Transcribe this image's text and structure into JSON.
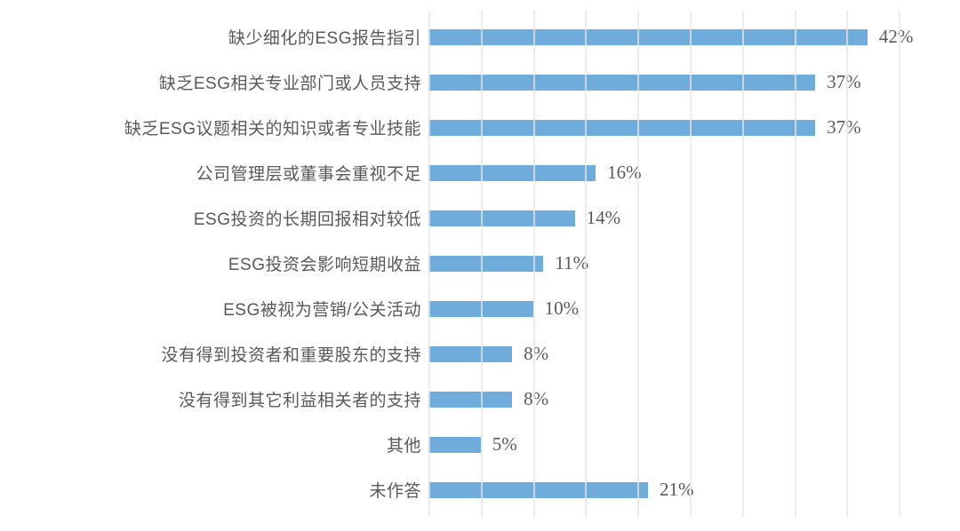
{
  "chart_data": {
    "type": "bar",
    "orientation": "horizontal",
    "title": "",
    "xlabel": "",
    "ylabel": "",
    "categories": [
      "缺少细化的ESG报告指引",
      "缺乏ESG相关专业部门或人员支持",
      "缺乏ESG议题相关的知识或者专业技能",
      "公司管理层或董事会重视不足",
      "ESG投资的长期回报相对较低",
      "ESG投资会影响短期收益",
      "ESG被视为营销/公关活动",
      "没有得到投资者和重要股东的支持",
      "没有得到其它利益相关者的支持",
      "其他",
      "未作答"
    ],
    "values": [
      42,
      37,
      37,
      16,
      14,
      11,
      10,
      8,
      8,
      5,
      21
    ],
    "value_labels": [
      "42%",
      "37%",
      "37%",
      "16%",
      "14%",
      "11%",
      "10%",
      "8%",
      "8%",
      "5%",
      "21%"
    ],
    "unit": "%",
    "xlim": [
      0,
      50
    ],
    "gridlines_percent": [
      0,
      5,
      10,
      15,
      20,
      25,
      30,
      35,
      40,
      45
    ],
    "grid": "vertical-only",
    "legend": "none",
    "axis_tick_labels": "none",
    "bar_color": "#6FABDB",
    "gridline_color": "#E5E5E5",
    "label_color": "#595959",
    "value_color": "#595959"
  }
}
